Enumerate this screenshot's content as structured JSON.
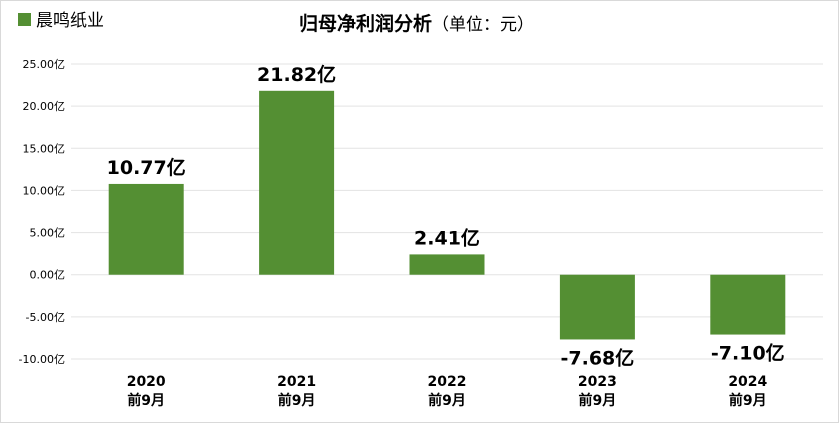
{
  "chart_data": {
    "type": "bar",
    "title": "归母净利润分析",
    "title_unit": "（单位：元）",
    "legend": {
      "position": "top-left",
      "entries": [
        "晨鸣纸业"
      ]
    },
    "series": [
      {
        "name": "晨鸣纸业",
        "color": "#548f33",
        "values": [
          10.77,
          21.82,
          2.41,
          -7.68,
          -7.1
        ],
        "data_labels": [
          "10.77亿",
          "21.82亿",
          "2.41亿",
          "-7.68亿",
          "-7.10亿"
        ]
      }
    ],
    "categories": [
      [
        "2020",
        "前9月"
      ],
      [
        "2021",
        "前9月"
      ],
      [
        "2022",
        "前9月"
      ],
      [
        "2023",
        "前9月"
      ],
      [
        "2024",
        "前9月"
      ]
    ],
    "ylim": [
      -10,
      25
    ],
    "yticks": [
      25,
      20,
      15,
      10,
      5,
      0,
      -5,
      -10
    ],
    "ytick_labels": [
      "25.00亿",
      "20.00亿",
      "15.00亿",
      "10.00亿",
      "5.00亿",
      "0.00亿",
      "-5.00亿",
      "-10.00亿"
    ],
    "grid": true
  }
}
